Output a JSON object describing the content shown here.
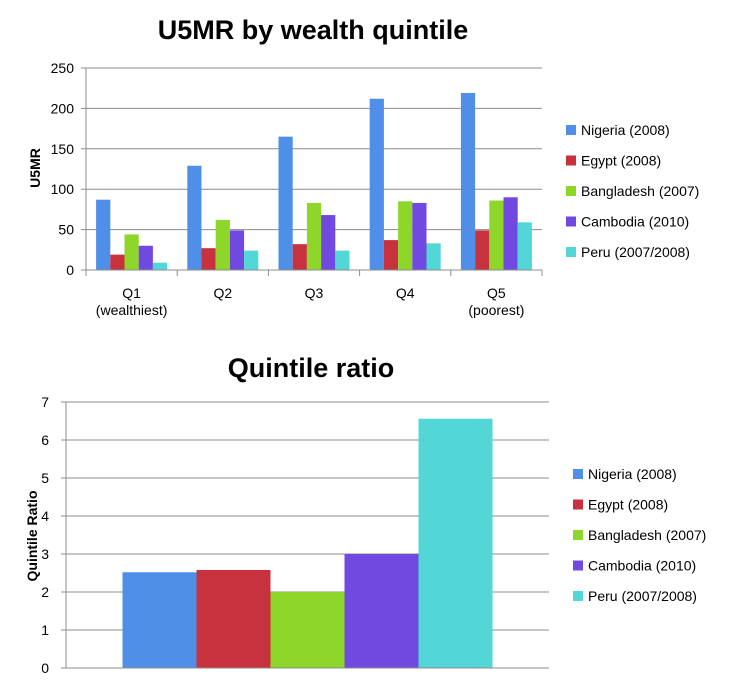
{
  "chart_data": [
    {
      "type": "bar",
      "title": "U5MR by wealth quintile",
      "xlabel": "",
      "ylabel": "U5MR",
      "ylim": [
        0,
        250
      ],
      "yticks": [
        0,
        50,
        100,
        150,
        200,
        250
      ],
      "grid": true,
      "legend_position": "right",
      "categories": [
        "Q1 (wealthiest)",
        "Q2",
        "Q3",
        "Q4",
        "Q5 (poorest)"
      ],
      "category_lines": [
        [
          "Q1",
          "(wealthiest)"
        ],
        [
          "Q2"
        ],
        [
          "Q3"
        ],
        [
          "Q4"
        ],
        [
          "Q5",
          "(poorest)"
        ]
      ],
      "series": [
        {
          "name": "Nigeria (2008)",
          "color": "#4F8FE8",
          "values": [
            87,
            129,
            165,
            212,
            219
          ]
        },
        {
          "name": "Egypt (2008)",
          "color": "#C8323F",
          "values": [
            19,
            27,
            32,
            37,
            49
          ]
        },
        {
          "name": "Bangladesh (2007)",
          "color": "#8ED62A",
          "values": [
            44,
            62,
            83,
            85,
            86
          ]
        },
        {
          "name": "Cambodia (2010)",
          "color": "#7049E0",
          "values": [
            30,
            49,
            68,
            83,
            90
          ]
        },
        {
          "name": "Peru (2007/2008)",
          "color": "#52D6D6",
          "values": [
            9,
            24,
            24,
            33,
            59
          ]
        }
      ]
    },
    {
      "type": "bar",
      "title": "Quintile ratio",
      "xlabel": "",
      "ylabel": "Quintile Ratio",
      "ylim": [
        0,
        7
      ],
      "yticks": [
        0,
        1,
        2,
        3,
        4,
        5,
        6,
        7
      ],
      "grid": true,
      "legend_position": "right",
      "categories": [
        ""
      ],
      "series": [
        {
          "name": "Nigeria (2008)",
          "color": "#4F8FE8",
          "values": [
            2.52
          ]
        },
        {
          "name": "Egypt (2008)",
          "color": "#C8323F",
          "values": [
            2.58
          ]
        },
        {
          "name": "Bangladesh (2007)",
          "color": "#8ED62A",
          "values": [
            2.0
          ]
        },
        {
          "name": "Cambodia (2010)",
          "color": "#7049E0",
          "values": [
            3.0
          ]
        },
        {
          "name": "Peru (2007/2008)",
          "color": "#52D6D6",
          "values": [
            6.56
          ]
        }
      ]
    }
  ]
}
